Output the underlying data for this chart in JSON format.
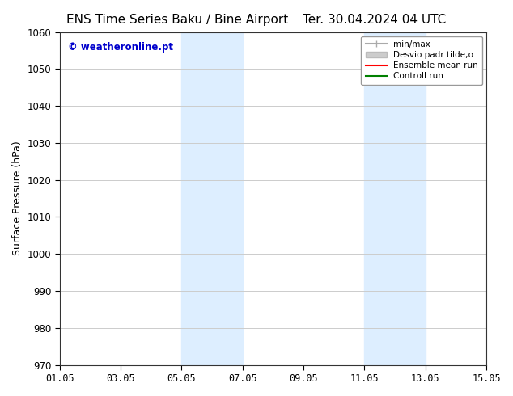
{
  "title_left": "ENS Time Series Baku / Bine Airport",
  "title_right": "Ter. 30.04.2024 04 UTC",
  "ylabel": "Surface Pressure (hPa)",
  "ylim": [
    970,
    1060
  ],
  "yticks": [
    970,
    980,
    990,
    1000,
    1010,
    1020,
    1030,
    1040,
    1050,
    1060
  ],
  "xlim_start": "2024-05-01",
  "xlim_end": "2024-05-16",
  "xtick_labels": [
    "01.05",
    "03.05",
    "05.05",
    "07.05",
    "09.05",
    "11.05",
    "13.05",
    "15.05"
  ],
  "xtick_positions": [
    0,
    2,
    4,
    6,
    8,
    10,
    12,
    14
  ],
  "shaded_regions": [
    {
      "start": 4,
      "end": 6
    },
    {
      "start": 10,
      "end": 12
    }
  ],
  "shaded_color": "#ddeeff",
  "bg_color": "#ffffff",
  "watermark_text": "© weatheronline.pt",
  "watermark_color": "#0000cc",
  "legend_entries": [
    {
      "label": "min/max",
      "color": "#aaaaaa",
      "lw": 1.5,
      "style": "|-|"
    },
    {
      "label": "Desvio padr tilde;o",
      "color": "#cccccc",
      "lw": 6
    },
    {
      "label": "Ensemble mean run",
      "color": "#ff0000",
      "lw": 1.5
    },
    {
      "label": "Controll run",
      "color": "#008000",
      "lw": 1.5
    }
  ],
  "grid_color": "#cccccc",
  "title_fontsize": 11,
  "axis_label_fontsize": 9,
  "tick_fontsize": 8.5
}
